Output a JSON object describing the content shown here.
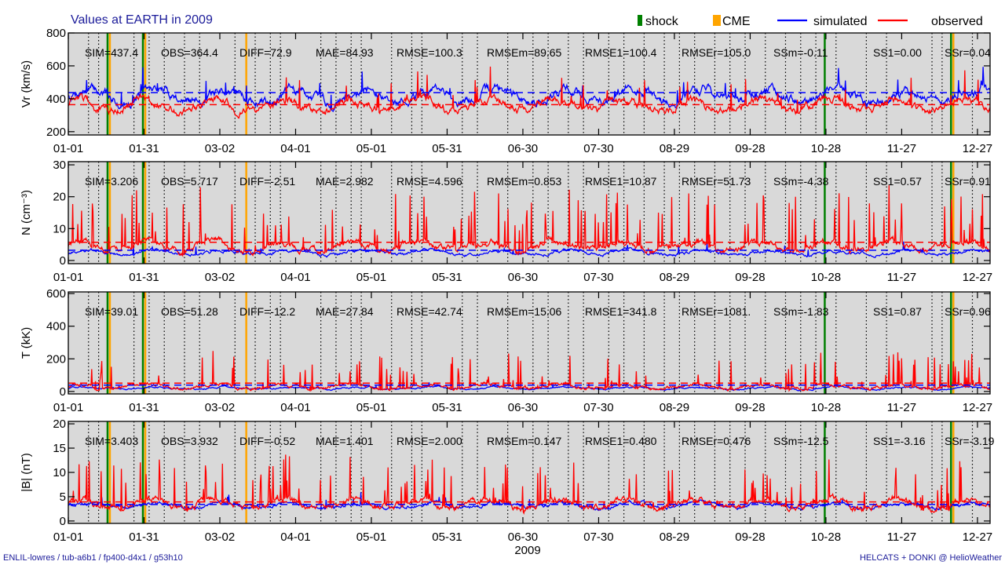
{
  "title": "Values at EARTH in 2009",
  "legend": [
    {
      "label": "shock",
      "color": "#008000",
      "kind": "bar"
    },
    {
      "label": "CME",
      "color": "#FFA500",
      "kind": "bar"
    },
    {
      "label": "simulated",
      "color": "#0000FF",
      "kind": "line"
    },
    {
      "label": "observed",
      "color": "#FF0000",
      "kind": "line"
    }
  ],
  "footer_left": "ENLIL-lowres / tub-a6b1 / fp400-d4x1 / g53h10",
  "footer_right": "HELCATS + DONKI @ HelioWeather",
  "xlabel": "2009",
  "colors": {
    "panel_bg": "#d9d9d9",
    "simulated": "#0000FF",
    "observed": "#FF0000",
    "shock": "#008000",
    "cme": "#FFA500"
  },
  "chart_data": [
    {
      "type": "line",
      "id": "vr",
      "ylabel": "Vr (km/s)",
      "ylim": [
        180,
        800
      ],
      "yticks": [
        200,
        400,
        600,
        800
      ],
      "xticks": [
        "01-01",
        "01-31",
        "03-02",
        "04-01",
        "05-01",
        "05-31",
        "06-30",
        "07-30",
        "08-29",
        "09-28",
        "10-28",
        "11-27",
        "12-27"
      ],
      "xtick_days": [
        0,
        30,
        60,
        90,
        120,
        150,
        180,
        210,
        240,
        270,
        300,
        330,
        360
      ],
      "stats": [
        "SIM=437.4",
        "OBS=364.4",
        "DIFF=72.9",
        "MAE=84.93",
        "RMSE=100.3",
        "RMSEm=89.65",
        "RMSE1=100.4",
        "RMSEr=105.0",
        "SSm=-0.11",
        "SS1=0.00",
        "SSr=0.04"
      ],
      "mean_sim": 437.4,
      "mean_obs": 364.4,
      "series": [
        {
          "name": "simulated",
          "baseline": 420,
          "variation": 70,
          "spike_rate": 0.02,
          "spike_height": 120
        },
        {
          "name": "observed",
          "baseline": 360,
          "variation": 60,
          "spike_rate": 0.04,
          "spike_height": 180
        }
      ]
    },
    {
      "type": "line",
      "id": "n",
      "ylabel": "N (cm⁻³)",
      "ylim": [
        -1,
        31
      ],
      "yticks": [
        0,
        10,
        20,
        30
      ],
      "xticks": [
        "01-01",
        "01-31",
        "03-02",
        "04-01",
        "05-01",
        "05-31",
        "06-30",
        "07-30",
        "08-29",
        "09-28",
        "10-28",
        "11-27",
        "12-27"
      ],
      "xtick_days": [
        0,
        30,
        60,
        90,
        120,
        150,
        180,
        210,
        240,
        270,
        300,
        330,
        360
      ],
      "stats": [
        "SIM=3.206",
        "OBS=5.717",
        "DIFF=-2.51",
        "MAE=2.982",
        "RMSE=4.596",
        "RMSEm=0.853",
        "RMSE1=10.87",
        "RMSEr=51.73",
        "SSm=-4.38",
        "SS1=0.57",
        "SSr=0.91"
      ],
      "mean_sim": 3.206,
      "mean_obs": 5.717,
      "series": [
        {
          "name": "simulated",
          "baseline": 2.5,
          "variation": 1.2,
          "spike_rate": 0.01,
          "spike_height": 3
        },
        {
          "name": "observed",
          "baseline": 4.5,
          "variation": 2.5,
          "spike_rate": 0.08,
          "spike_height": 18
        }
      ]
    },
    {
      "type": "line",
      "id": "t",
      "ylabel": "T (kK)",
      "ylim": [
        -15,
        610
      ],
      "yticks": [
        0,
        200,
        400,
        600
      ],
      "xticks": [
        "01-01",
        "01-31",
        "03-02",
        "04-01",
        "05-01",
        "05-31",
        "06-30",
        "07-30",
        "08-29",
        "09-28",
        "10-28",
        "11-27",
        "12-27"
      ],
      "xtick_days": [
        0,
        30,
        60,
        90,
        120,
        150,
        180,
        210,
        240,
        270,
        300,
        330,
        360
      ],
      "stats": [
        "SIM=39.01",
        "OBS=51.28",
        "DIFF=-12.2",
        "MAE=27.84",
        "RMSE=42.74",
        "RMSEm=15.06",
        "RMSE1=341.8",
        "RMSEr=1081.",
        "SSm=-1.83",
        "SS1=0.87",
        "SSr=0.96"
      ],
      "mean_sim": 39.01,
      "mean_obs": 51.28,
      "series": [
        {
          "name": "simulated",
          "baseline": 20,
          "variation": 12,
          "spike_rate": 0.01,
          "spike_height": 25
        },
        {
          "name": "observed",
          "baseline": 30,
          "variation": 25,
          "spike_rate": 0.07,
          "spike_height": 200
        }
      ]
    },
    {
      "type": "line",
      "id": "b",
      "ylabel": "|B| (nT)",
      "ylim": [
        -0.5,
        20.5
      ],
      "yticks": [
        0,
        5,
        10,
        15,
        20
      ],
      "xticks": [
        "01-01",
        "01-31",
        "03-02",
        "04-01",
        "05-01",
        "05-31",
        "06-30",
        "07-30",
        "08-29",
        "09-28",
        "10-28",
        "11-27",
        "12-27"
      ],
      "xtick_days": [
        0,
        30,
        60,
        90,
        120,
        150,
        180,
        210,
        240,
        270,
        300,
        330,
        360
      ],
      "stats": [
        "SIM=3.403",
        "OBS=3.932",
        "DIFF=-0.52",
        "MAE=1.401",
        "RMSE=2.000",
        "RMSEm=0.147",
        "RMSE1=0.480",
        "RMSEr=0.476",
        "SSm=-12.5",
        "SS1=-3.16",
        "SSr=-3.19"
      ],
      "mean_sim": 3.403,
      "mean_obs": 3.932,
      "series": [
        {
          "name": "simulated",
          "baseline": 3.2,
          "variation": 0.9,
          "spike_rate": 0.01,
          "spike_height": 2.5
        },
        {
          "name": "observed",
          "baseline": 3.5,
          "variation": 1.6,
          "spike_rate": 0.07,
          "spike_height": 9
        }
      ]
    }
  ],
  "events": {
    "shock_days": [
      16,
      30,
      300,
      350
    ],
    "cme_days": [
      16,
      30,
      70,
      350
    ],
    "dotted_days": [
      8,
      12,
      26,
      32,
      38,
      46,
      52,
      66,
      74,
      80,
      84,
      100,
      106,
      112,
      116,
      128,
      136,
      140,
      156,
      162,
      174,
      184,
      190,
      198,
      204,
      214,
      220,
      228,
      236,
      242,
      248,
      256,
      262,
      268,
      276,
      284,
      290,
      296,
      304,
      316,
      324,
      342,
      346,
      358
    ]
  }
}
